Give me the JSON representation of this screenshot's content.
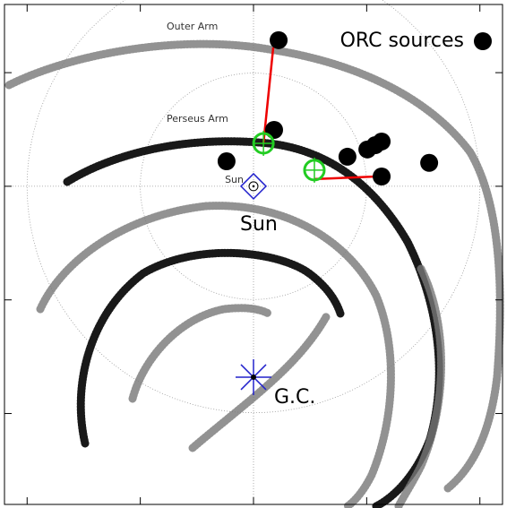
{
  "chart_data": {
    "type": "scatter",
    "xlim": [
      -11,
      11
    ],
    "ylim": [
      -14,
      8
    ],
    "xticks": [
      -10,
      -5,
      0,
      5,
      10
    ],
    "yticks": [
      -10,
      -5,
      0,
      5
    ],
    "legend": "upper right",
    "annotations": [
      "Outer Arm",
      "Perseus Arm",
      "Sun",
      "Sun",
      "G.C."
    ],
    "sun": {
      "x": 0,
      "y": 0
    },
    "galactic_center": {
      "x": 0,
      "y": -8.4
    },
    "series": [
      {
        "name": "ORC sources",
        "color": "#000000",
        "x": [
          1.11,
          0.91,
          -1.19,
          4.15,
          5.03,
          5.38,
          5.66,
          5.66,
          7.76
        ],
        "values": [
          6.43,
          2.48,
          1.1,
          1.3,
          1.62,
          1.81,
          1.97,
          0.43,
          1.03
        ]
      },
      {
        "color": "#22cc22",
        "x": [
          0.44,
          2.69
        ],
        "values": [
          1.89,
          0.71
        ]
      }
    ]
  }
}
